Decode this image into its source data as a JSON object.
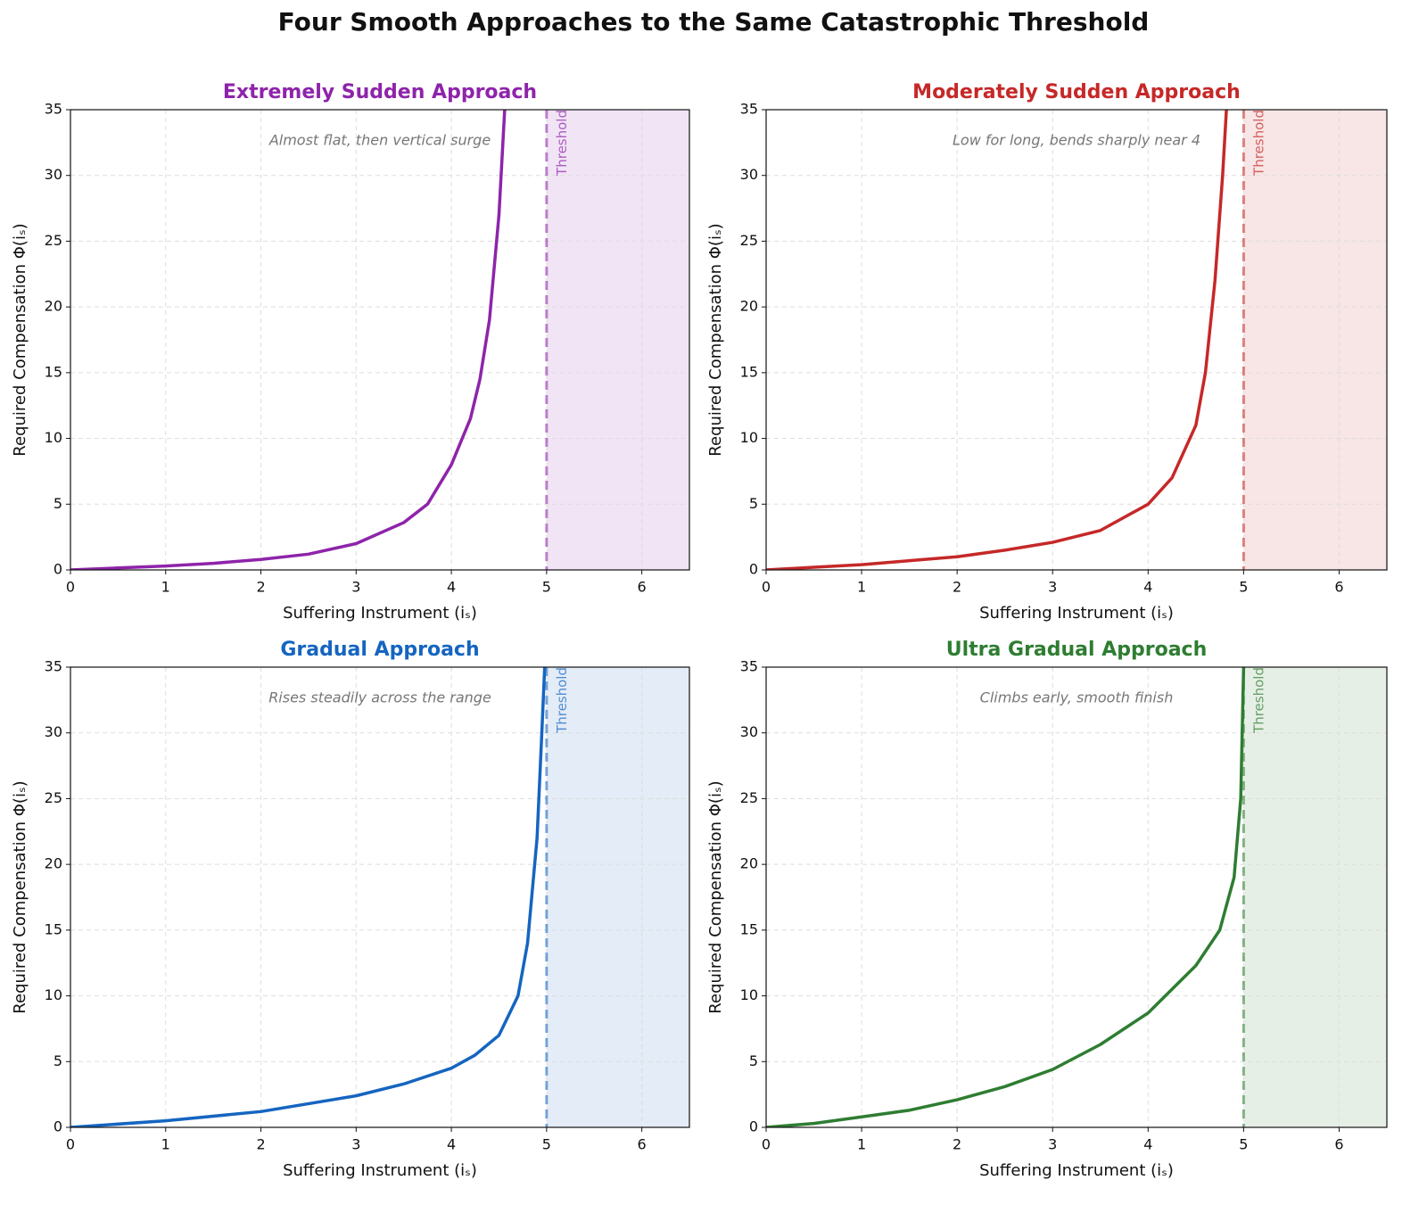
{
  "title": "Four Smooth Approaches to the Same Catastrophic Threshold",
  "chart_data": [
    {
      "type": "line",
      "title": "Extremely Sudden Approach",
      "annotation": "Almost flat, then vertical surge",
      "xlabel": "Suffering Instrument (iₛ)",
      "ylabel": "Required Compensation Φ(iₛ)",
      "color": "#8e24aa",
      "xlim": [
        0,
        6.5
      ],
      "ylim": [
        0,
        35
      ],
      "xticks": [
        0,
        1,
        2,
        3,
        4,
        5,
        6
      ],
      "yticks": [
        0,
        5,
        10,
        15,
        20,
        25,
        30,
        35
      ],
      "grid": true,
      "threshold": 5,
      "threshold_label": "Threshold",
      "x": [
        0,
        0.5,
        1,
        1.5,
        2,
        2.5,
        3,
        3.5,
        3.75,
        4,
        4.2,
        4.3,
        4.4,
        4.5,
        4.56
      ],
      "values": [
        0,
        0.15,
        0.3,
        0.5,
        0.8,
        1.2,
        2.0,
        3.6,
        5,
        8,
        11.5,
        14.5,
        19,
        27,
        35
      ]
    },
    {
      "type": "line",
      "title": "Moderately Sudden Approach",
      "annotation": "Low for long, bends sharply near 4",
      "xlabel": "Suffering Instrument (iₛ)",
      "ylabel": "Required Compensation Φ(iₛ)",
      "color": "#c62828",
      "xlim": [
        0,
        6.5
      ],
      "ylim": [
        0,
        35
      ],
      "xticks": [
        0,
        1,
        2,
        3,
        4,
        5,
        6
      ],
      "yticks": [
        0,
        5,
        10,
        15,
        20,
        25,
        30,
        35
      ],
      "grid": true,
      "threshold": 5,
      "threshold_label": "Threshold",
      "x": [
        0,
        0.5,
        1,
        1.5,
        2,
        2.5,
        3,
        3.5,
        4,
        4.25,
        4.5,
        4.6,
        4.7,
        4.78,
        4.82
      ],
      "values": [
        0,
        0.2,
        0.4,
        0.7,
        1.0,
        1.5,
        2.1,
        3.0,
        5.0,
        7,
        11,
        15,
        22,
        30,
        35
      ]
    },
    {
      "type": "line",
      "title": "Gradual Approach",
      "annotation": "Rises steadily across the range",
      "xlabel": "Suffering Instrument (iₛ)",
      "ylabel": "Required Compensation Φ(iₛ)",
      "color": "#1565c0",
      "xlim": [
        0,
        6.5
      ],
      "ylim": [
        0,
        35
      ],
      "xticks": [
        0,
        1,
        2,
        3,
        4,
        5,
        6
      ],
      "yticks": [
        0,
        5,
        10,
        15,
        20,
        25,
        30,
        35
      ],
      "grid": true,
      "threshold": 5,
      "threshold_label": "Threshold",
      "x": [
        0,
        1,
        2,
        3,
        3.5,
        4,
        4.25,
        4.5,
        4.7,
        4.8,
        4.9,
        4.95,
        4.98
      ],
      "values": [
        0,
        0.5,
        1.2,
        2.4,
        3.3,
        4.5,
        5.5,
        7,
        10,
        14,
        22,
        30,
        35
      ]
    },
    {
      "type": "line",
      "title": "Ultra Gradual Approach",
      "annotation": "Climbs early, smooth finish",
      "xlabel": "Suffering Instrument (iₛ)",
      "ylabel": "Required Compensation Φ(iₛ)",
      "color": "#2e7d32",
      "xlim": [
        0,
        6.5
      ],
      "ylim": [
        0,
        35
      ],
      "xticks": [
        0,
        1,
        2,
        3,
        4,
        5,
        6
      ],
      "yticks": [
        0,
        5,
        10,
        15,
        20,
        25,
        30,
        35
      ],
      "grid": true,
      "threshold": 5,
      "threshold_label": "Threshold",
      "x": [
        0,
        0.5,
        1,
        1.5,
        2,
        2.5,
        3,
        3.5,
        4,
        4.5,
        4.75,
        4.9,
        4.97,
        5.0
      ],
      "values": [
        0,
        0.3,
        0.8,
        1.3,
        2.1,
        3.1,
        4.4,
        6.3,
        8.7,
        12.3,
        15,
        19,
        25,
        35
      ]
    }
  ]
}
